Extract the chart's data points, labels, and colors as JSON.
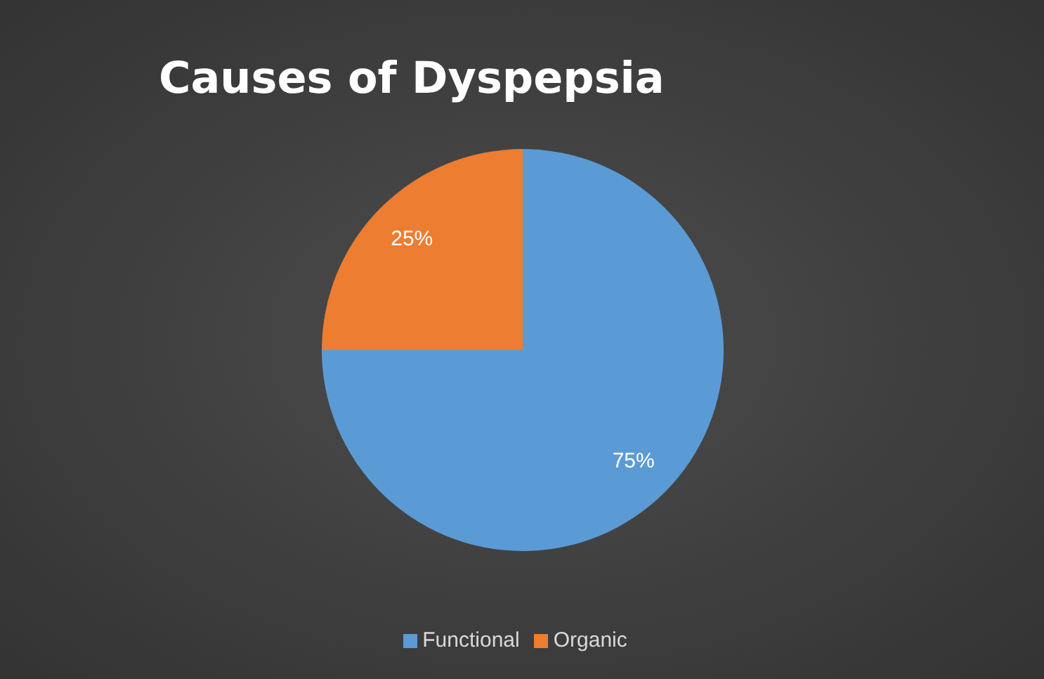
{
  "chart_data": {
    "type": "pie",
    "title": "Causes of Dyspepsia",
    "categories": [
      "Functional",
      "Organic"
    ],
    "values": [
      75,
      25
    ],
    "colors": [
      "#5b9bd5",
      "#ed7d31"
    ],
    "value_labels": [
      "75%",
      "25%"
    ],
    "legend": "bottom"
  }
}
